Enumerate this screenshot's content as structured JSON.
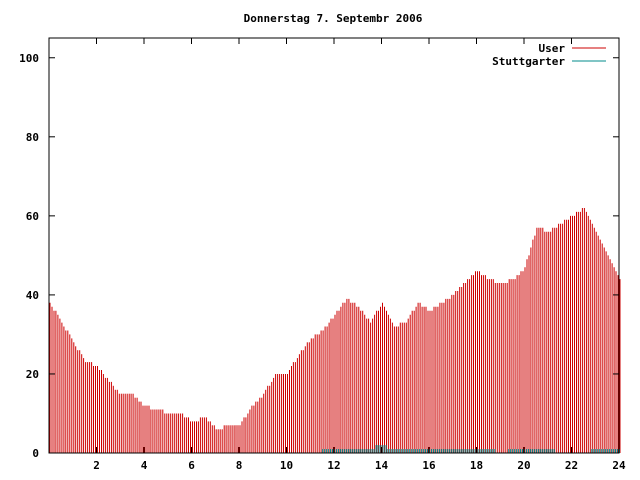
{
  "chart_data": {
    "type": "bar",
    "title": "Donnerstag 7. Septembr 2006",
    "xlabel": "",
    "ylabel": "",
    "xlim": [
      0,
      24
    ],
    "ylim": [
      0,
      105
    ],
    "x_ticks": [
      2,
      4,
      6,
      8,
      10,
      12,
      14,
      16,
      18,
      20,
      22,
      24
    ],
    "y_ticks": [
      0,
      20,
      40,
      60,
      80,
      100
    ],
    "grid": false,
    "legend_position": "top-right",
    "colors": {
      "User": "#cc0000",
      "Stuttgarter": "#008b8b"
    },
    "series": [
      {
        "name": "User",
        "x": [
          0.0,
          0.5,
          1.0,
          1.5,
          2.0,
          2.5,
          3.0,
          3.5,
          4.0,
          4.5,
          5.0,
          5.5,
          6.0,
          6.5,
          7.0,
          7.5,
          8.0,
          8.5,
          9.0,
          9.5,
          10.0,
          10.5,
          11.0,
          11.5,
          12.0,
          12.5,
          13.0,
          13.5,
          14.0,
          14.5,
          15.0,
          15.5,
          16.0,
          16.5,
          17.0,
          17.5,
          18.0,
          18.5,
          19.0,
          19.5,
          20.0,
          20.5,
          21.0,
          21.5,
          22.0,
          22.5,
          23.0,
          23.5,
          24.0
        ],
        "values": [
          38,
          33,
          28,
          23,
          22,
          18,
          15,
          15,
          12,
          11,
          10,
          10,
          8,
          9,
          6,
          7,
          7,
          12,
          15,
          20,
          20,
          25,
          29,
          31,
          35,
          39,
          37,
          33,
          38,
          32,
          33,
          38,
          36,
          38,
          40,
          43,
          46,
          44,
          43,
          44,
          47,
          57,
          56,
          58,
          60,
          62,
          56,
          50,
          44
        ]
      },
      {
        "name": "Stuttgarter",
        "x": [
          11.5,
          12.0,
          12.5,
          13.0,
          13.5,
          14.0,
          14.5,
          15.0,
          15.5,
          16.0,
          16.5,
          17.0,
          17.5,
          18.0,
          18.5,
          19.0,
          19.5,
          20.0,
          20.5,
          21.0,
          21.5,
          22.0,
          22.5,
          23.0,
          23.5,
          24.0
        ],
        "values": [
          1,
          1,
          1,
          1,
          1,
          2,
          1,
          1,
          1,
          1,
          1,
          1,
          1,
          1,
          1,
          0,
          1,
          1,
          1,
          1,
          0,
          0,
          0,
          1,
          1,
          1
        ]
      }
    ]
  }
}
